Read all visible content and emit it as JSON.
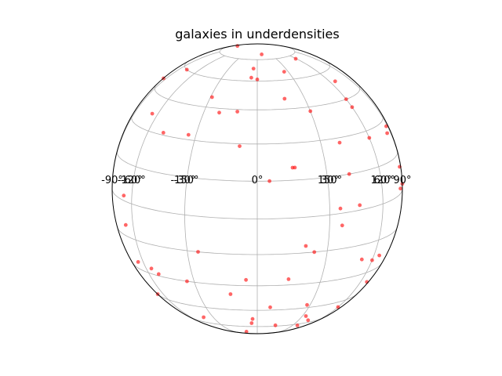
{
  "chart_data": {
    "type": "scatter",
    "projection": "orthographic globe",
    "title": "galaxies in underdensities",
    "xlabel": "",
    "ylabel": "",
    "grid": true,
    "lon_ticks": [
      "-150°",
      "-120°",
      "-90°",
      "-60°",
      "-30°",
      "0°",
      "30°",
      "60°",
      "90°",
      "120°",
      "150°"
    ],
    "lon_tick_values": [
      -150,
      -120,
      -90,
      -60,
      -30,
      0,
      30,
      60,
      90,
      120,
      150
    ],
    "lat_grid_values": [
      -75,
      -60,
      -45,
      -30,
      -15,
      0,
      15,
      30,
      45,
      60,
      75
    ],
    "marker_color": "#ff0000",
    "series": [
      {
        "points": [
          {
            "lon": -128,
            "lat": 80
          },
          {
            "lon": 10,
            "lat": 80
          },
          {
            "lon": 26,
            "lat": 65
          },
          {
            "lon": -4,
            "lat": 68
          },
          {
            "lon": 59,
            "lat": 72
          },
          {
            "lon": -5,
            "lat": 62
          },
          {
            "lon": 0,
            "lat": 61
          },
          {
            "lon": -76,
            "lat": 60
          },
          {
            "lon": -120,
            "lat": 51
          },
          {
            "lon": -100,
            "lat": 49
          },
          {
            "lon": -29,
            "lat": 50
          },
          {
            "lon": 17,
            "lat": 50
          },
          {
            "lon": 66,
            "lat": 54
          },
          {
            "lon": 30,
            "lat": 43
          },
          {
            "lon": -11,
            "lat": 44
          },
          {
            "lon": -21,
            "lat": 43
          },
          {
            "lon": 60,
            "lat": 41
          },
          {
            "lon": 60,
            "lat": 45
          },
          {
            "lon": -65,
            "lat": 37
          },
          {
            "lon": -34,
            "lat": 32
          },
          {
            "lon": -49,
            "lat": 31
          },
          {
            "lon": -8,
            "lat": 29
          },
          {
            "lon": 40,
            "lat": 28
          },
          {
            "lon": 81,
            "lat": 25
          },
          {
            "lon": 60,
            "lat": 27
          },
          {
            "lon": 86,
            "lat": 27
          },
          {
            "lon": 15,
            "lat": 20
          },
          {
            "lon": 16,
            "lat": 20
          },
          {
            "lon": 41,
            "lat": 15
          },
          {
            "lon": 5,
            "lat": 15
          },
          {
            "lon": -98,
            "lat": 14
          },
          {
            "lon": 85,
            "lat": 10
          },
          {
            "lon": 81,
            "lat": 2
          },
          {
            "lon": 90,
            "lat": 2
          },
          {
            "lon": 45,
            "lat": 2
          },
          {
            "lon": -67,
            "lat": 2
          },
          {
            "lon": 35,
            "lat": 2
          },
          {
            "lon": 36,
            "lat": -5
          },
          {
            "lon": -156,
            "lat": 0
          },
          {
            "lon": -67,
            "lat": -10
          },
          {
            "lon": -110,
            "lat": -15
          },
          {
            "lon": -115,
            "lat": -12
          },
          {
            "lon": -89,
            "lat": -15
          },
          {
            "lon": 20,
            "lat": -12
          },
          {
            "lon": 24,
            "lat": -15
          },
          {
            "lon": -25,
            "lat": -15
          },
          {
            "lon": -66,
            "lat": -26
          },
          {
            "lon": -55,
            "lat": -27
          },
          {
            "lon": -51,
            "lat": -29
          },
          {
            "lon": -34,
            "lat": -30
          },
          {
            "lon": 51,
            "lat": -22
          },
          {
            "lon": 60,
            "lat": -24
          },
          {
            "lon": 66,
            "lat": -23
          },
          {
            "lon": -5,
            "lat": -27
          },
          {
            "lon": -13,
            "lat": -35
          },
          {
            "lon": 14,
            "lat": -27
          },
          {
            "lon": -85,
            "lat": -39
          },
          {
            "lon": -93,
            "lat": -44
          },
          {
            "lon": -76,
            "lat": -45
          },
          {
            "lon": -98,
            "lat": -44
          },
          {
            "lon": -117,
            "lat": -27
          },
          {
            "lon": 28,
            "lat": -43
          },
          {
            "lon": 71,
            "lat": -37
          },
          {
            "lon": 7,
            "lat": -43
          },
          {
            "lon": -39,
            "lat": -54
          },
          {
            "lon": -3,
            "lat": -52
          },
          {
            "lon": 40,
            "lat": -57
          },
          {
            "lon": -4,
            "lat": -56
          },
          {
            "lon": 14,
            "lat": -59
          },
          {
            "lon": 33,
            "lat": -52
          },
          {
            "lon": 60,
            "lat": -50
          },
          {
            "lon": 36,
            "lat": -62
          },
          {
            "lon": -14,
            "lat": -78
          },
          {
            "lon": -12,
            "lat": -69
          }
        ]
      }
    ]
  }
}
